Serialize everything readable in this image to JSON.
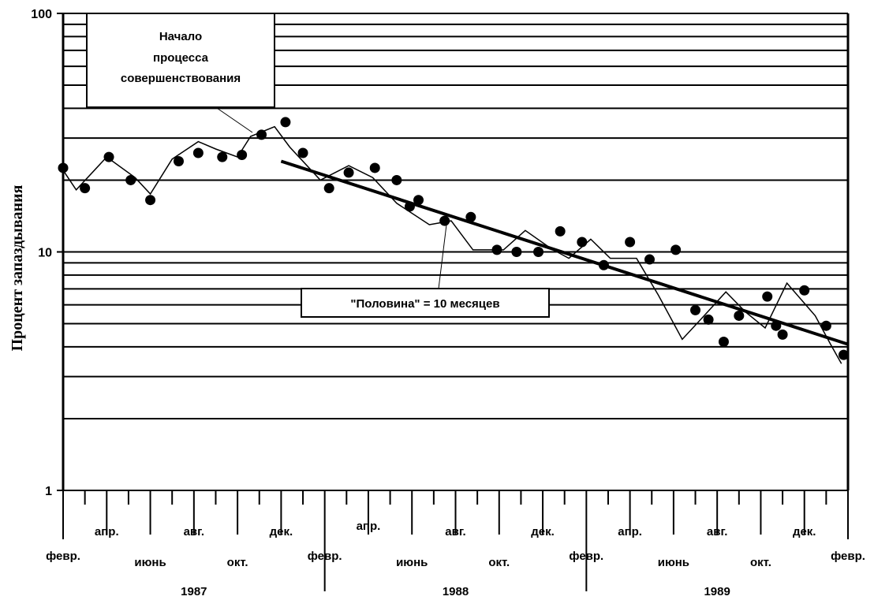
{
  "chart_data": {
    "type": "line",
    "title": "",
    "ylabel": "Процент запаздывания",
    "y_scale": "log",
    "ylim": [
      1,
      100
    ],
    "y_ticks": [
      {
        "value": 1,
        "label": "1"
      },
      {
        "value": 10,
        "label": "10"
      },
      {
        "value": 100,
        "label": "100"
      }
    ],
    "grid": "horizontal",
    "x_range_months": [
      0,
      36
    ],
    "month_labels": [
      {
        "m": 0,
        "label": "февр.",
        "row": 3
      },
      {
        "m": 2,
        "label": "апр.",
        "row": 1
      },
      {
        "m": 4,
        "label": "июнь",
        "row": 4
      },
      {
        "m": 6,
        "label": "авг.",
        "row": 1
      },
      {
        "m": 8,
        "label": "окт.",
        "row": 4
      },
      {
        "m": 10,
        "label": "дек.",
        "row": 1
      },
      {
        "m": 12,
        "label": "февр.",
        "row": 3
      },
      {
        "m": 14,
        "label": "апр.",
        "row": 0
      },
      {
        "m": 16,
        "label": "июнь",
        "row": 4
      },
      {
        "m": 18,
        "label": "авг.",
        "row": 1
      },
      {
        "m": 20,
        "label": "окт.",
        "row": 4
      },
      {
        "m": 22,
        "label": "дек.",
        "row": 1
      },
      {
        "m": 24,
        "label": "февр.",
        "row": 3
      },
      {
        "m": 26,
        "label": "апр.",
        "row": 1
      },
      {
        "m": 28,
        "label": "июнь",
        "row": 4
      },
      {
        "m": 30,
        "label": "авг.",
        "row": 1
      },
      {
        "m": 32,
        "label": "окт.",
        "row": 4
      },
      {
        "m": 34,
        "label": "дек.",
        "row": 1
      },
      {
        "m": 36,
        "label": "февр.",
        "row": 3
      }
    ],
    "years": [
      {
        "label": "1987",
        "center_m": 6
      },
      {
        "label": "1988",
        "center_m": 18
      },
      {
        "label": "1989",
        "center_m": 30
      }
    ],
    "series": [
      {
        "kind": "line",
        "points": [
          [
            0,
            22
          ],
          [
            0.6,
            18.2
          ],
          [
            2,
            25
          ],
          [
            3.3,
            20.5
          ],
          [
            4,
            17.5
          ],
          [
            5,
            24.5
          ],
          [
            6.2,
            29
          ],
          [
            7,
            27
          ],
          [
            8,
            25
          ],
          [
            8.6,
            30.5
          ],
          [
            9.7,
            33.5
          ],
          [
            10.4,
            27.5
          ],
          [
            11.8,
            20
          ],
          [
            13.1,
            23
          ],
          [
            14.2,
            20.5
          ],
          [
            15.3,
            16
          ],
          [
            16.8,
            13
          ],
          [
            17.8,
            13.5
          ],
          [
            18.8,
            10.2
          ],
          [
            20.2,
            10.2
          ],
          [
            21.2,
            12.3
          ],
          [
            22.4,
            10.3
          ],
          [
            23.2,
            9.4
          ],
          [
            24.2,
            11.3
          ],
          [
            25.1,
            9.4
          ],
          [
            26.3,
            9.4
          ],
          [
            27.3,
            6.6
          ],
          [
            28.4,
            4.3
          ],
          [
            29.4,
            5.4
          ],
          [
            30.4,
            6.8
          ],
          [
            31.3,
            5.6
          ],
          [
            32.2,
            4.8
          ],
          [
            33.2,
            7.4
          ],
          [
            34.5,
            5.4
          ],
          [
            35.2,
            4.1
          ],
          [
            35.7,
            3.4
          ]
        ]
      },
      {
        "kind": "scatter",
        "points": [
          [
            0,
            22.5
          ],
          [
            1,
            18.5
          ],
          [
            2.1,
            25
          ],
          [
            3.1,
            20
          ],
          [
            4,
            16.5
          ],
          [
            5.3,
            24
          ],
          [
            6.2,
            26
          ],
          [
            7.3,
            25
          ],
          [
            8.2,
            25.5
          ],
          [
            9.1,
            31
          ],
          [
            10.2,
            35
          ],
          [
            11,
            26
          ],
          [
            12.2,
            18.5
          ],
          [
            13.1,
            21.5
          ],
          [
            14.3,
            22.5
          ],
          [
            15.3,
            20
          ],
          [
            15.9,
            15.5
          ],
          [
            16.3,
            16.5
          ],
          [
            17.5,
            13.5
          ],
          [
            18.7,
            14
          ],
          [
            19.9,
            10.2
          ],
          [
            20.8,
            10
          ],
          [
            21.8,
            10
          ],
          [
            22.8,
            12.2
          ],
          [
            23.8,
            11
          ],
          [
            24.8,
            8.8
          ],
          [
            26,
            11
          ],
          [
            26.9,
            9.3
          ],
          [
            28.1,
            10.2
          ],
          [
            29,
            5.7
          ],
          [
            29.6,
            5.2
          ],
          [
            30.3,
            4.2
          ],
          [
            31,
            5.4
          ],
          [
            32.3,
            6.5
          ],
          [
            32.7,
            4.9
          ],
          [
            33,
            4.5
          ],
          [
            34,
            6.9
          ],
          [
            35,
            4.9
          ],
          [
            35.8,
            3.7
          ]
        ]
      },
      {
        "kind": "trend",
        "points": [
          [
            10,
            24
          ],
          [
            36,
            4.1
          ]
        ]
      }
    ],
    "annotations": [
      {
        "id": "start",
        "lines": [
          "Начало",
          "процесса",
          "совершенствования"
        ]
      },
      {
        "id": "half",
        "lines": [
          "\"Половина\" = 10 месяцев"
        ]
      }
    ]
  }
}
